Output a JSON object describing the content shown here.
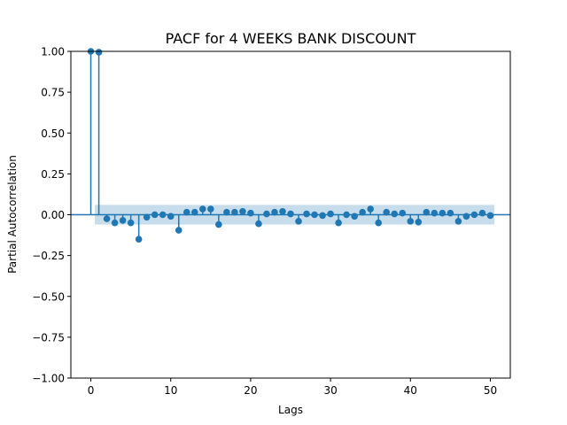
{
  "chart_data": {
    "type": "stem",
    "title": "PACF for 4 WEEKS BANK DISCOUNT",
    "xlabel": "Lags",
    "ylabel": "Partial Autocorrelation",
    "xlim": [
      -2.5,
      52.5
    ],
    "ylim": [
      -1.0,
      1.0
    ],
    "x_ticks": [
      0,
      10,
      20,
      30,
      40,
      50
    ],
    "y_ticks": [
      -1.0,
      -0.75,
      -0.5,
      -0.25,
      0.0,
      0.25,
      0.5,
      0.75,
      1.0
    ],
    "y_tick_labels": [
      "−1.00",
      "−0.75",
      "−0.50",
      "−0.25",
      "0.00",
      "0.25",
      "0.50",
      "0.75",
      "1.00"
    ],
    "grid": false,
    "zero_line": 0.0,
    "confidence_band": {
      "x_start": 0.5,
      "x_end": 50.5,
      "lower": -0.06,
      "upper": 0.06
    },
    "lags": [
      0,
      1,
      2,
      3,
      4,
      5,
      6,
      7,
      8,
      9,
      10,
      11,
      12,
      13,
      14,
      15,
      16,
      17,
      18,
      19,
      20,
      21,
      22,
      23,
      24,
      25,
      26,
      27,
      28,
      29,
      30,
      31,
      32,
      33,
      34,
      35,
      36,
      37,
      38,
      39,
      40,
      41,
      42,
      43,
      44,
      45,
      46,
      47,
      48,
      49,
      50
    ],
    "values": [
      1.0,
      0.995,
      -0.025,
      -0.05,
      -0.035,
      -0.05,
      -0.15,
      -0.015,
      0.0,
      0.0,
      -0.01,
      -0.095,
      0.015,
      0.015,
      0.035,
      0.035,
      -0.06,
      0.015,
      0.015,
      0.02,
      0.01,
      -0.055,
      0.005,
      0.015,
      0.02,
      0.005,
      -0.04,
      0.005,
      0.0,
      -0.005,
      0.005,
      -0.05,
      0.0,
      -0.01,
      0.015,
      0.035,
      -0.05,
      0.015,
      0.005,
      0.01,
      -0.04,
      -0.045,
      0.015,
      0.01,
      0.01,
      0.01,
      -0.04,
      -0.01,
      0.0,
      0.01,
      -0.005
    ],
    "colors": {
      "series": "#1f77b4",
      "band": "#1f77b4",
      "axis": "#000000"
    }
  }
}
